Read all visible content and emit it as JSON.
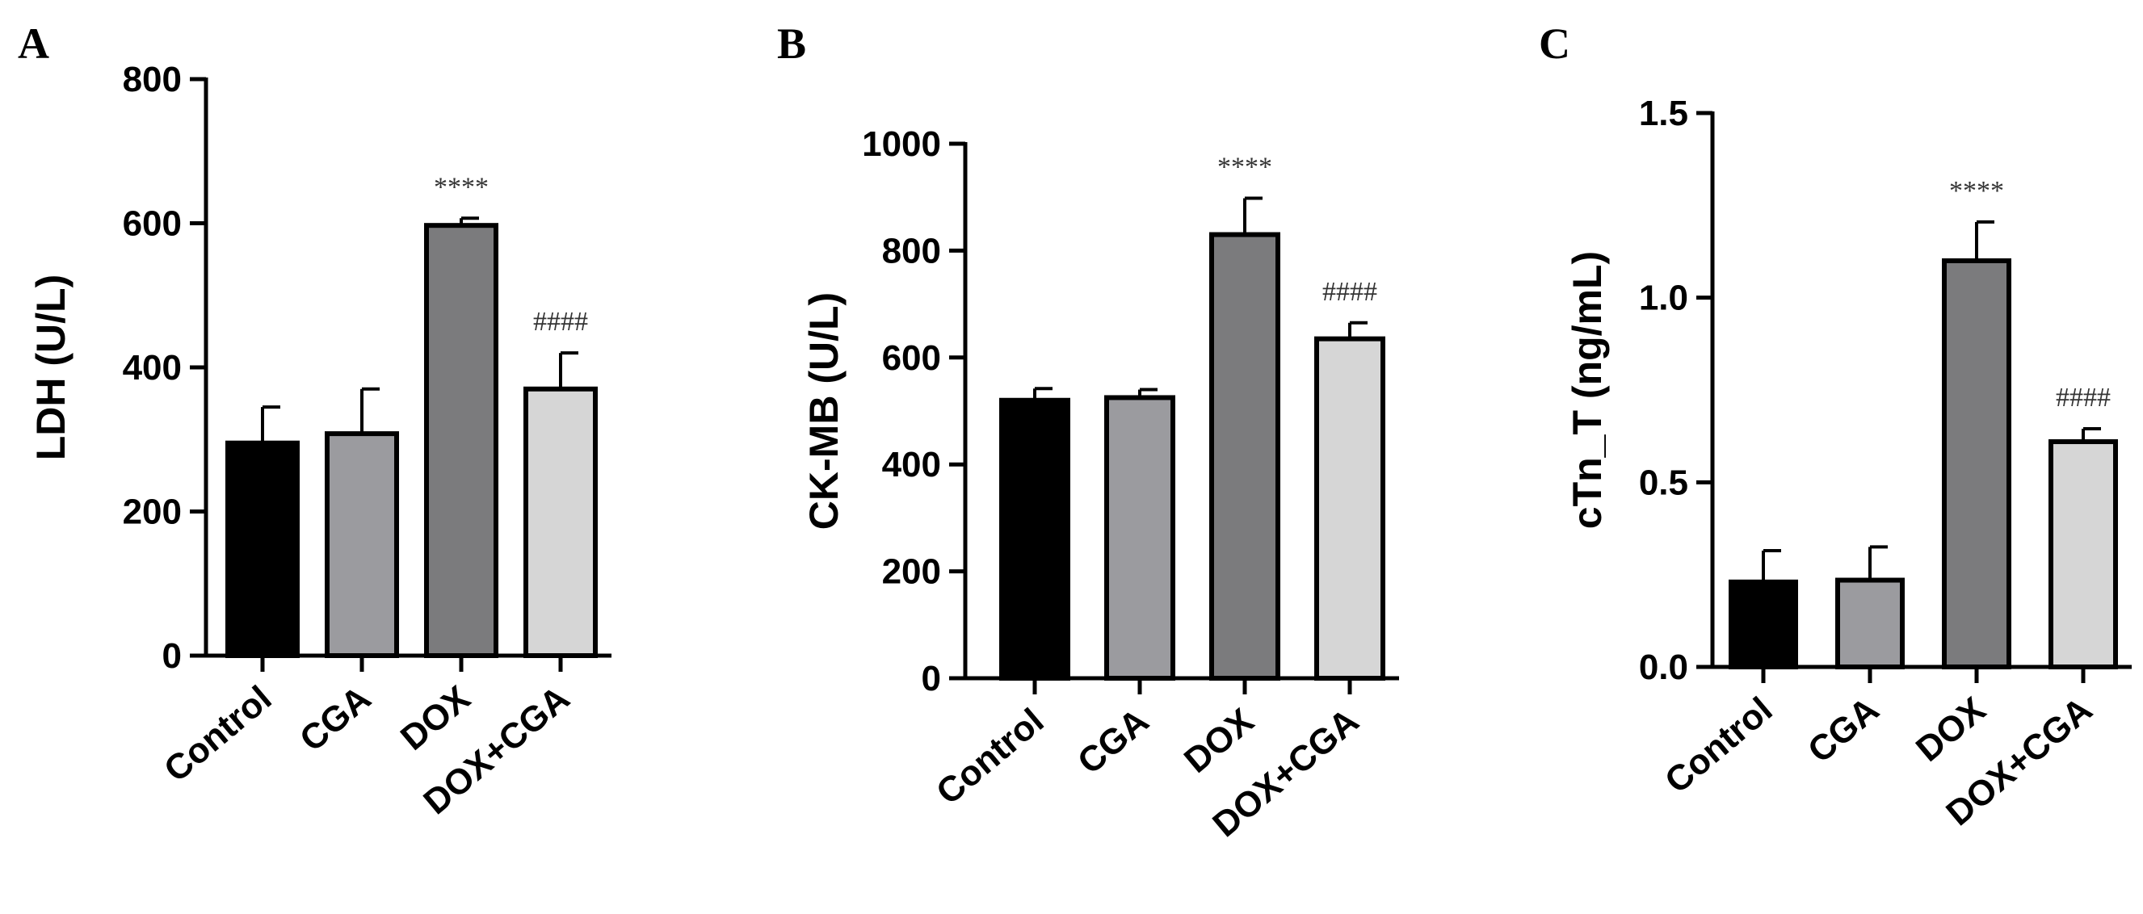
{
  "chart_data": [
    {
      "panel": "A",
      "type": "bar",
      "ylabel": "LDH (U/L)",
      "ylim": [
        0,
        800
      ],
      "yticks": [
        0,
        200,
        400,
        600,
        800
      ],
      "categories": [
        "Control",
        "CGA",
        "DOX",
        "DOX+CGA"
      ],
      "values": [
        295,
        308,
        597,
        370
      ],
      "errors": [
        50,
        62,
        10,
        50
      ],
      "annotations": [
        "",
        "",
        "****",
        "####"
      ],
      "colors": [
        "#000000",
        "#9b9b9f",
        "#7b7b7d",
        "#d6d6d6"
      ]
    },
    {
      "panel": "B",
      "type": "bar",
      "ylabel": "CK-MB (U/L)",
      "ylim": [
        0,
        1000
      ],
      "yticks": [
        0,
        200,
        400,
        600,
        800,
        1000
      ],
      "categories": [
        "Control",
        "CGA",
        "DOX",
        "DOX+CGA"
      ],
      "values": [
        520,
        525,
        830,
        635
      ],
      "errors": [
        22,
        15,
        68,
        30
      ],
      "annotations": [
        "",
        "",
        "****",
        "####"
      ],
      "colors": [
        "#000000",
        "#9b9b9f",
        "#7b7b7d",
        "#d6d6d6"
      ]
    },
    {
      "panel": "C",
      "type": "bar",
      "ylabel": "cTn_T (ng/mL)",
      "ylim": [
        0,
        1.5
      ],
      "yticks": [
        "0.0",
        "0.5",
        "1.0",
        "1.5"
      ],
      "categories": [
        "Control",
        "CGA",
        "DOX",
        "DOX+CGA"
      ],
      "values": [
        0.23,
        0.235,
        1.1,
        0.61
      ],
      "errors": [
        0.085,
        0.09,
        0.105,
        0.035
      ],
      "annotations": [
        "",
        "",
        "****",
        "####"
      ],
      "colors": [
        "#000000",
        "#9b9b9f",
        "#7b7b7d",
        "#d6d6d6"
      ]
    }
  ]
}
